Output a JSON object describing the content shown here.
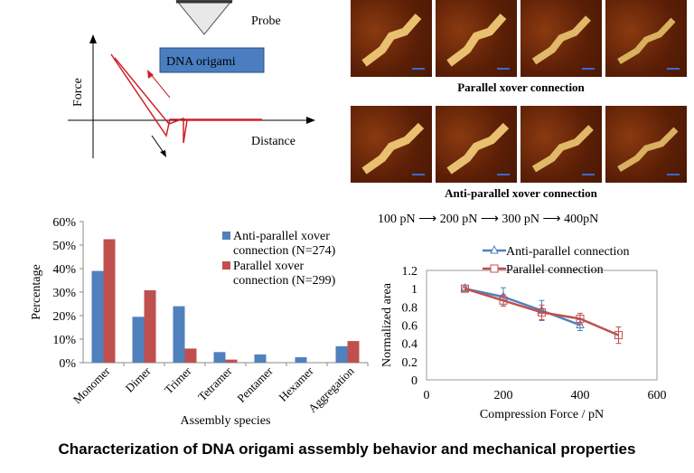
{
  "diagram": {
    "probe_label": "Probe",
    "origami_label": "DNA origami",
    "y_label": "Force",
    "x_label": "Distance"
  },
  "afm": {
    "row1_caption": "Parallel xover connection",
    "row2_caption": "Anti-parallel xover connection",
    "force_steps": [
      "100 pN",
      "200 pN",
      "300 pN",
      "400pN"
    ]
  },
  "title": "Characterization of DNA origami assembly behavior and mechanical properties",
  "colors": {
    "blue": "#4f81bd",
    "red": "#c0504d",
    "diagram_red": "#d0202a",
    "origami_box": "#4a7ec0"
  },
  "chart_data": [
    {
      "type": "bar",
      "xlabel": "Assembly species",
      "ylabel": "Percentage",
      "ylim": [
        0,
        60
      ],
      "yticks": [
        "0%",
        "10%",
        "20%",
        "30%",
        "40%",
        "50%",
        "60%"
      ],
      "categories": [
        "Monomer",
        "Dimer",
        "Trimer",
        "Tetramer",
        "Pentamer",
        "Hexamer",
        "Aggregation"
      ],
      "series": [
        {
          "name": "Anti-parallel xover connection (N=274)",
          "values": [
            39,
            19.5,
            24,
            4.5,
            3.5,
            2.3,
            7
          ],
          "color": "#4f81bd"
        },
        {
          "name": "Parallel xover connection (N=299)",
          "values": [
            52.5,
            30.8,
            6,
            1.3,
            0,
            0,
            9.2
          ],
          "color": "#c0504d"
        }
      ],
      "legend": "top-right"
    },
    {
      "type": "line",
      "xlabel": "Compression Force / pN",
      "ylabel": "Normalized  area",
      "xlim": [
        0,
        600
      ],
      "ylim": [
        0,
        1.2
      ],
      "xticks": [
        "0",
        "200",
        "400",
        "600"
      ],
      "yticks": [
        "0",
        "0.2",
        "0.4",
        "0.6",
        "0.8",
        "1",
        "1.2"
      ],
      "series": [
        {
          "name": "Anti-parallel connection",
          "marker": "triangle",
          "color": "#4f81bd",
          "x": [
            100,
            200,
            300,
            400
          ],
          "y": [
            1.0,
            0.91,
            0.76,
            0.6
          ],
          "err": [
            0.02,
            0.1,
            0.11,
            0.06
          ]
        },
        {
          "name": "Parallel connection",
          "marker": "square",
          "color": "#c0504d",
          "x": [
            100,
            200,
            300,
            400,
            500
          ],
          "y": [
            1.0,
            0.87,
            0.74,
            0.67,
            0.49
          ],
          "err": [
            0.02,
            0.06,
            0.08,
            0.06,
            0.09
          ]
        }
      ],
      "legend": "top"
    }
  ]
}
